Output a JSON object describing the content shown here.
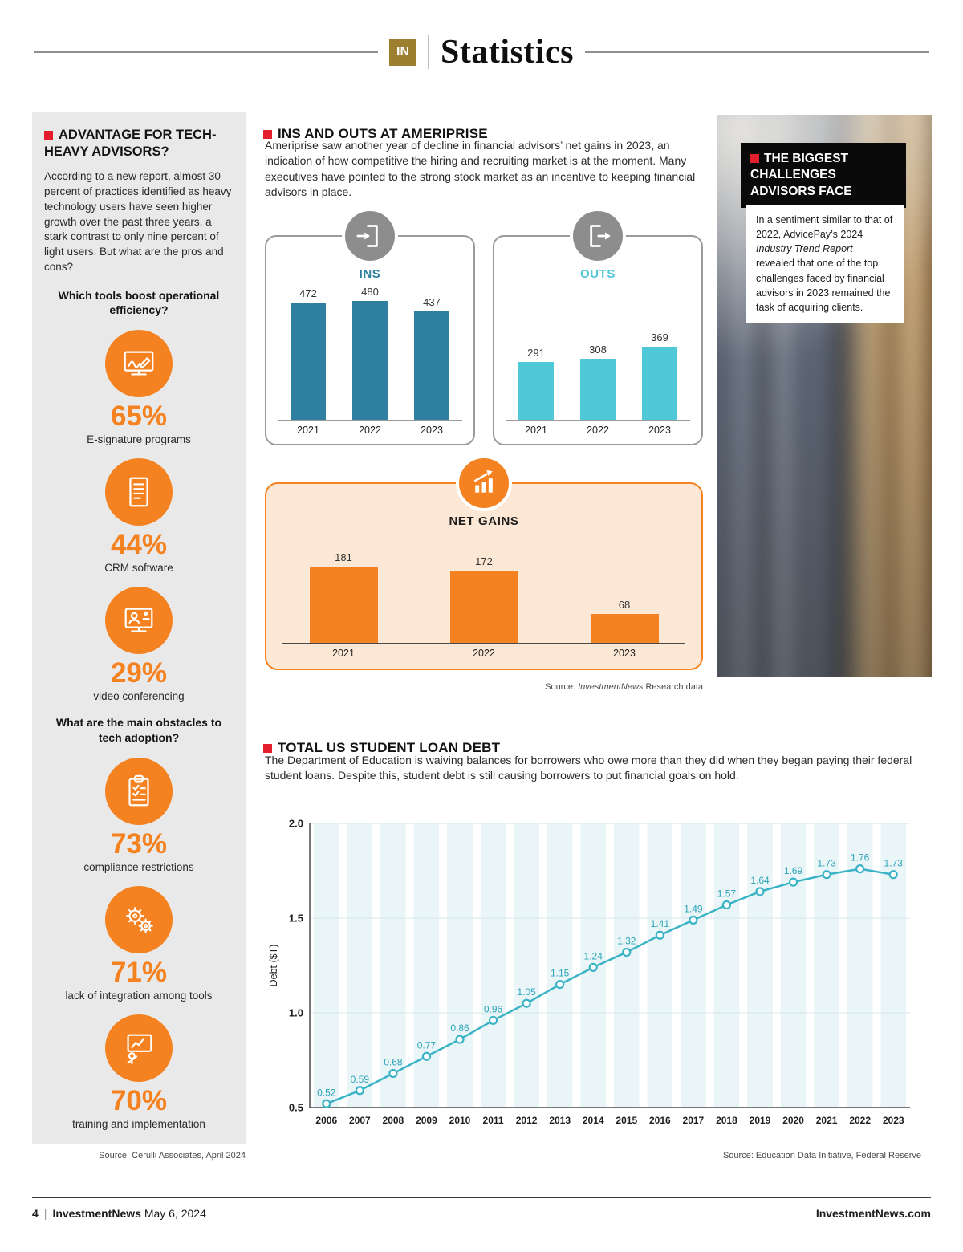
{
  "header": {
    "badge": "IN",
    "title": "Statistics"
  },
  "sidebar": {
    "title": "ADVANTAGE FOR TECH-HEAVY ADVISORS?",
    "intro": "According to a new report, almost 30 percent of practices identified as heavy technology users have seen higher growth over the past three years, a stark contrast to only nine percent of light users. But what are the pros and cons?",
    "q1": "Which tools boost operational efficiency?",
    "tools": [
      {
        "pct": "65%",
        "label": "E-signature programs",
        "icon": "esignature-icon"
      },
      {
        "pct": "44%",
        "label": "CRM software",
        "icon": "crm-list-icon"
      },
      {
        "pct": "29%",
        "label": "video conferencing",
        "icon": "video-conferencing-icon"
      }
    ],
    "q2": "What are the main obstacles to tech adoption?",
    "obstacles": [
      {
        "pct": "73%",
        "label": "compliance restrictions",
        "icon": "clipboard-checklist-icon"
      },
      {
        "pct": "71%",
        "label": "lack of integration among tools",
        "icon": "gears-icon"
      },
      {
        "pct": "70%",
        "label": "training and implementation",
        "icon": "training-presentation-icon"
      }
    ],
    "source": "Source: Cerulli Associates, April 2024"
  },
  "ameriprise": {
    "title": "INS AND OUTS AT AMERIPRISE",
    "intro": "Ameriprise saw another year of decline in financial advisors’ net gains in 2023, an indication of how competitive the hiring and recruiting market is at the moment. Many executives have pointed to the strong stock market as an incentive to keeping financial advisors in place.",
    "source_prefix": "Source: ",
    "source_brand": "InvestmentNews",
    "source_suffix": " Research data"
  },
  "challenges": {
    "title": "THE BIGGEST CHALLENGES ADVISORS FACE",
    "body_1": "In a sentiment similar to that of 2022, AdvicePay’s 2024 ",
    "body_italic": "Industry Trend Report",
    "body_2": " revealed that one of the top challenges faced by financial advisors in 2023 remained the task of acquiring clients."
  },
  "student_loan": {
    "title": "TOTAL US STUDENT LOAN DEBT",
    "intro": "The Department of Education is waiving balances for borrowers who owe more than they did when they began paying their federal student loans. Despite this, student debt is still causing borrowers to put financial goals on hold.",
    "source": "Source: Education Data Initiative, Federal Reserve"
  },
  "footer": {
    "page": "4",
    "brand": "InvestmentNews",
    "date": "May 6, 2024",
    "site": "InvestmentNews.com"
  },
  "chart_data": [
    {
      "id": "ins",
      "type": "bar",
      "title": "INS",
      "categories": [
        "2021",
        "2022",
        "2023"
      ],
      "values": [
        472,
        480,
        437
      ],
      "color": "#2e7fa0",
      "ylim": [
        0,
        480
      ]
    },
    {
      "id": "outs",
      "type": "bar",
      "title": "OUTS",
      "categories": [
        "2021",
        "2022",
        "2023"
      ],
      "values": [
        291,
        308,
        369
      ],
      "color": "#4fc8d8",
      "ylim": [
        0,
        600
      ]
    },
    {
      "id": "netgains",
      "type": "bar",
      "title": "NET GAINS",
      "categories": [
        "2021",
        "2022",
        "2023"
      ],
      "values": [
        181,
        172,
        68
      ],
      "color": "#f58220",
      "ylim": [
        0,
        200
      ]
    },
    {
      "id": "student_loan_debt",
      "type": "line",
      "title": "TOTAL US STUDENT LOAN DEBT",
      "x": [
        "2006",
        "2007",
        "2008",
        "2009",
        "2010",
        "2011",
        "2012",
        "2013",
        "2014",
        "2015",
        "2016",
        "2017",
        "2018",
        "2019",
        "2020",
        "2021",
        "2022",
        "2023"
      ],
      "values": [
        0.52,
        0.59,
        0.68,
        0.77,
        0.86,
        0.96,
        1.05,
        1.15,
        1.24,
        1.32,
        1.41,
        1.49,
        1.57,
        1.64,
        1.69,
        1.73,
        1.76,
        1.73
      ],
      "ylabel": "Debt ($T)",
      "ylim": [
        0.5,
        2.0
      ],
      "yticks": [
        0.5,
        1.0,
        1.5,
        2.0
      ],
      "line_color": "#3ab3c6",
      "label_color": "#2ba4ba",
      "band_color": "#e9f5f6",
      "grid": true,
      "legend": "none"
    }
  ]
}
